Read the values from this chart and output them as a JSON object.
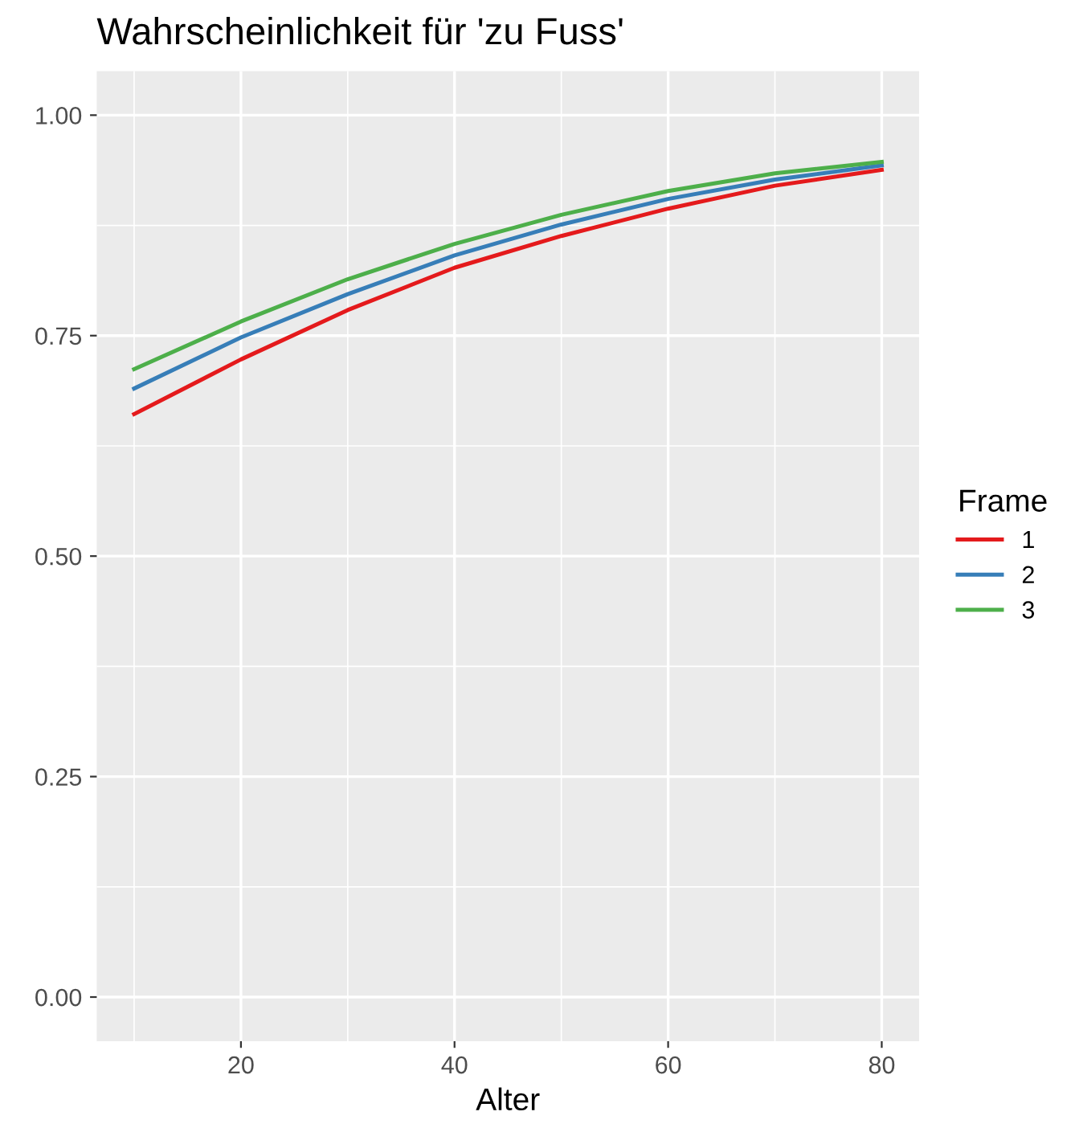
{
  "chart_data": {
    "type": "line",
    "title": "Wahrscheinlichkeit für 'zu Fuss'",
    "xlabel": "Alter",
    "legend_title": "Frame",
    "x": [
      10,
      20,
      30,
      40,
      50,
      60,
      70,
      80
    ],
    "series": [
      {
        "name": "1",
        "color": "#e41a1c",
        "values": [
          0.661,
          0.723,
          0.779,
          0.827,
          0.863,
          0.894,
          0.92,
          0.938
        ]
      },
      {
        "name": "2",
        "color": "#377eb8",
        "values": [
          0.69,
          0.748,
          0.797,
          0.841,
          0.876,
          0.905,
          0.927,
          0.943
        ]
      },
      {
        "name": "3",
        "color": "#4daf4a",
        "values": [
          0.712,
          0.766,
          0.814,
          0.854,
          0.887,
          0.914,
          0.934,
          0.947
        ]
      }
    ],
    "xlim": [
      6.5,
      83.5
    ],
    "ylim": [
      -0.05,
      1.05
    ],
    "xticks": [
      20,
      40,
      60,
      80
    ],
    "yticks": [
      {
        "value": 0,
        "label": "0.00"
      },
      {
        "value": 0.25,
        "label": "0.25"
      },
      {
        "value": 0.5,
        "label": "0.50"
      },
      {
        "value": 0.75,
        "label": "0.75"
      },
      {
        "value": 1,
        "label": "1.00"
      }
    ],
    "grid": true,
    "legend": "right",
    "line_style": "solid",
    "marker": "none"
  }
}
